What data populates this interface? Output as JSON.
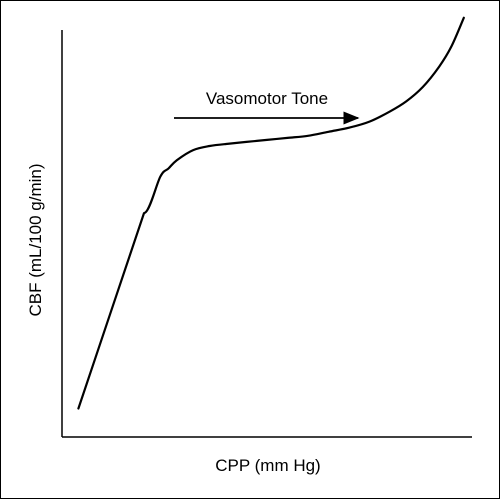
{
  "chart_data": {
    "type": "line",
    "xlabel": "CPP (mm Hg)",
    "ylabel": "CBF (mL/100 g/min)",
    "xlim": [
      0,
      100
    ],
    "ylim": [
      0,
      100
    ],
    "grid": false,
    "legend": "none",
    "series": [
      {
        "x": [
          4,
          8,
          12,
          16,
          20,
          24,
          26,
          28,
          32,
          36,
          40,
          45,
          50,
          55,
          60,
          65,
          70,
          75,
          80,
          84,
          88,
          92,
          95,
          98
        ],
        "values": [
          7,
          19,
          31,
          43,
          55,
          64,
          66,
          68,
          70.5,
          71.5,
          72,
          72.5,
          73,
          73.5,
          74,
          75,
          76,
          77.5,
          80,
          82.5,
          86,
          91,
          96,
          103
        ]
      }
    ],
    "annotation": {
      "text": "Vasomotor Tone",
      "arrow": "right"
    },
    "colors": {
      "line": "#000000",
      "axis": "#000000",
      "background": "#ffffff"
    }
  }
}
